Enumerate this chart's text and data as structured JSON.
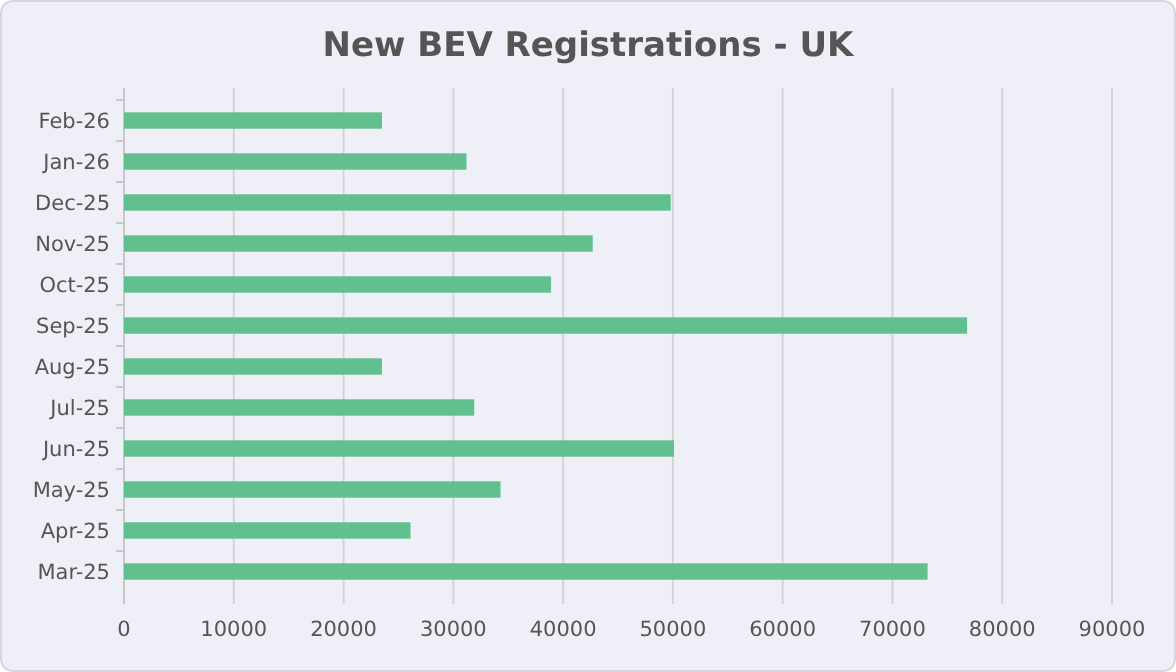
{
  "chart_data": {
    "type": "bar",
    "title": "New BEV Registrations - UK",
    "orientation": "horizontal",
    "categories": [
      "Feb-26",
      "Jan-26",
      "Dec-25",
      "Nov-25",
      "Oct-25",
      "Sep-25",
      "Aug-25",
      "Jul-25",
      "Jun-25",
      "May-25",
      "Apr-25",
      "Mar-25"
    ],
    "values": [
      23500,
      31200,
      49800,
      42700,
      38900,
      76800,
      23500,
      31900,
      50100,
      34300,
      26100,
      73200
    ],
    "color": "#62c08f",
    "xlim": [
      0,
      90000
    ],
    "xticks": [
      0,
      10000,
      20000,
      30000,
      40000,
      50000,
      60000,
      70000,
      80000,
      90000
    ],
    "grid": "x"
  }
}
